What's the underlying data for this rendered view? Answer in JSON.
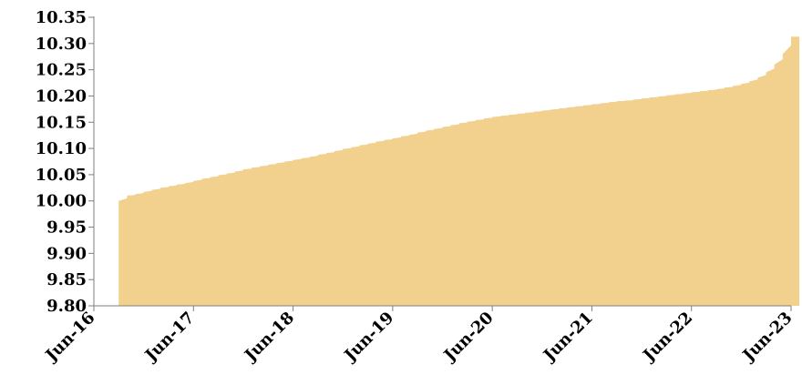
{
  "chart_data": {
    "type": "area",
    "title": "",
    "xlabel": "",
    "ylabel": "",
    "x_ticks": [
      "Jun-16",
      "Jun-17",
      "Jun-18",
      "Jun-19",
      "Jun-20",
      "Jun-21",
      "Jun-22",
      "Jun-23"
    ],
    "y_ticks": [
      "9.80",
      "9.85",
      "9.90",
      "9.95",
      "10.00",
      "10.05",
      "10.10",
      "10.15",
      "10.20",
      "10.25",
      "10.30",
      "10.35"
    ],
    "ylim": [
      9.8,
      10.35
    ],
    "xlim": [
      "2016-06",
      "2023-06"
    ],
    "grid": false,
    "legend": "none",
    "fill_color": "#f2d08e",
    "series": [
      {
        "x": [
          "2016-09",
          "2016-10",
          "2016-11",
          "2016-12",
          "2017-01",
          "2017-02",
          "2017-03",
          "2017-04",
          "2017-05",
          "2017-06",
          "2017-07",
          "2017-08",
          "2017-09",
          "2017-10",
          "2017-11",
          "2017-12",
          "2018-01",
          "2018-02",
          "2018-03",
          "2018-04",
          "2018-05",
          "2018-06",
          "2018-07",
          "2018-08",
          "2018-09",
          "2018-10",
          "2018-11",
          "2018-12",
          "2019-01",
          "2019-02",
          "2019-03",
          "2019-04",
          "2019-05",
          "2019-06",
          "2019-07",
          "2019-08",
          "2019-09",
          "2019-10",
          "2019-11",
          "2019-12",
          "2020-01",
          "2020-02",
          "2020-03",
          "2020-04",
          "2020-05",
          "2020-06",
          "2020-07",
          "2020-08",
          "2020-09",
          "2020-10",
          "2020-11",
          "2020-12",
          "2021-01",
          "2021-02",
          "2021-03",
          "2021-04",
          "2021-05",
          "2021-06",
          "2021-07",
          "2021-08",
          "2021-09",
          "2021-10",
          "2021-11",
          "2021-12",
          "2022-01",
          "2022-02",
          "2022-03",
          "2022-04",
          "2022-05",
          "2022-06",
          "2022-07",
          "2022-08",
          "2022-09",
          "2022-10",
          "2022-11",
          "2022-12",
          "2023-01",
          "2023-02",
          "2023-03",
          "2023-04",
          "2023-05",
          "2023-06"
        ],
        "values": [
          10.0,
          10.01,
          10.013,
          10.017,
          10.021,
          10.025,
          10.028,
          10.031,
          10.034,
          10.038,
          10.042,
          10.045,
          10.049,
          10.052,
          10.056,
          10.06,
          10.063,
          10.066,
          10.069,
          10.072,
          10.075,
          10.078,
          10.081,
          10.084,
          10.088,
          10.091,
          10.095,
          10.099,
          10.102,
          10.106,
          10.109,
          10.113,
          10.116,
          10.119,
          10.123,
          10.126,
          10.13,
          10.134,
          10.137,
          10.141,
          10.144,
          10.148,
          10.151,
          10.154,
          10.157,
          10.16,
          10.162,
          10.164,
          10.166,
          10.168,
          10.17,
          10.172,
          10.174,
          10.176,
          10.178,
          10.18,
          10.182,
          10.184,
          10.186,
          10.188,
          10.19,
          10.191,
          10.193,
          10.195,
          10.197,
          10.199,
          10.201,
          10.203,
          10.205,
          10.207,
          10.209,
          10.211,
          10.213,
          10.216,
          10.219,
          10.223,
          10.228,
          10.235,
          10.245,
          10.26,
          10.28,
          10.313
        ]
      }
    ]
  }
}
